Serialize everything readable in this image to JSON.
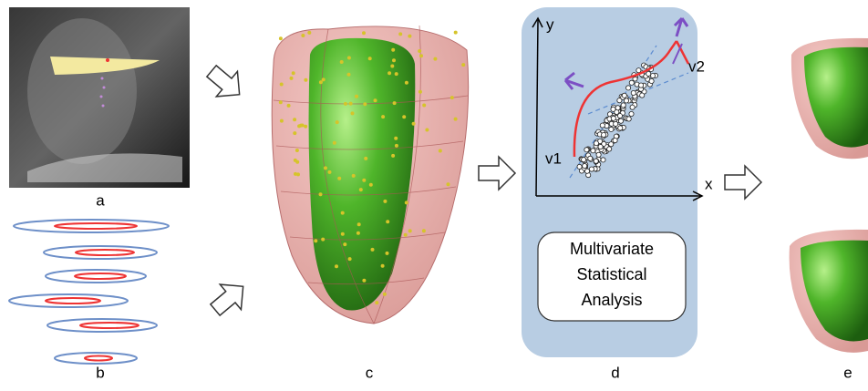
{
  "panels": [
    {
      "label": "a"
    },
    {
      "label": "b"
    },
    {
      "label": "c"
    },
    {
      "label": "d"
    },
    {
      "label": "e"
    }
  ],
  "scatter_plot": {
    "x_label": "x",
    "y_label": "y",
    "vectors": [
      "v1",
      "v2"
    ]
  },
  "analysis_box": {
    "lines": [
      "Multivariate",
      "Statistical",
      "Analysis"
    ]
  }
}
